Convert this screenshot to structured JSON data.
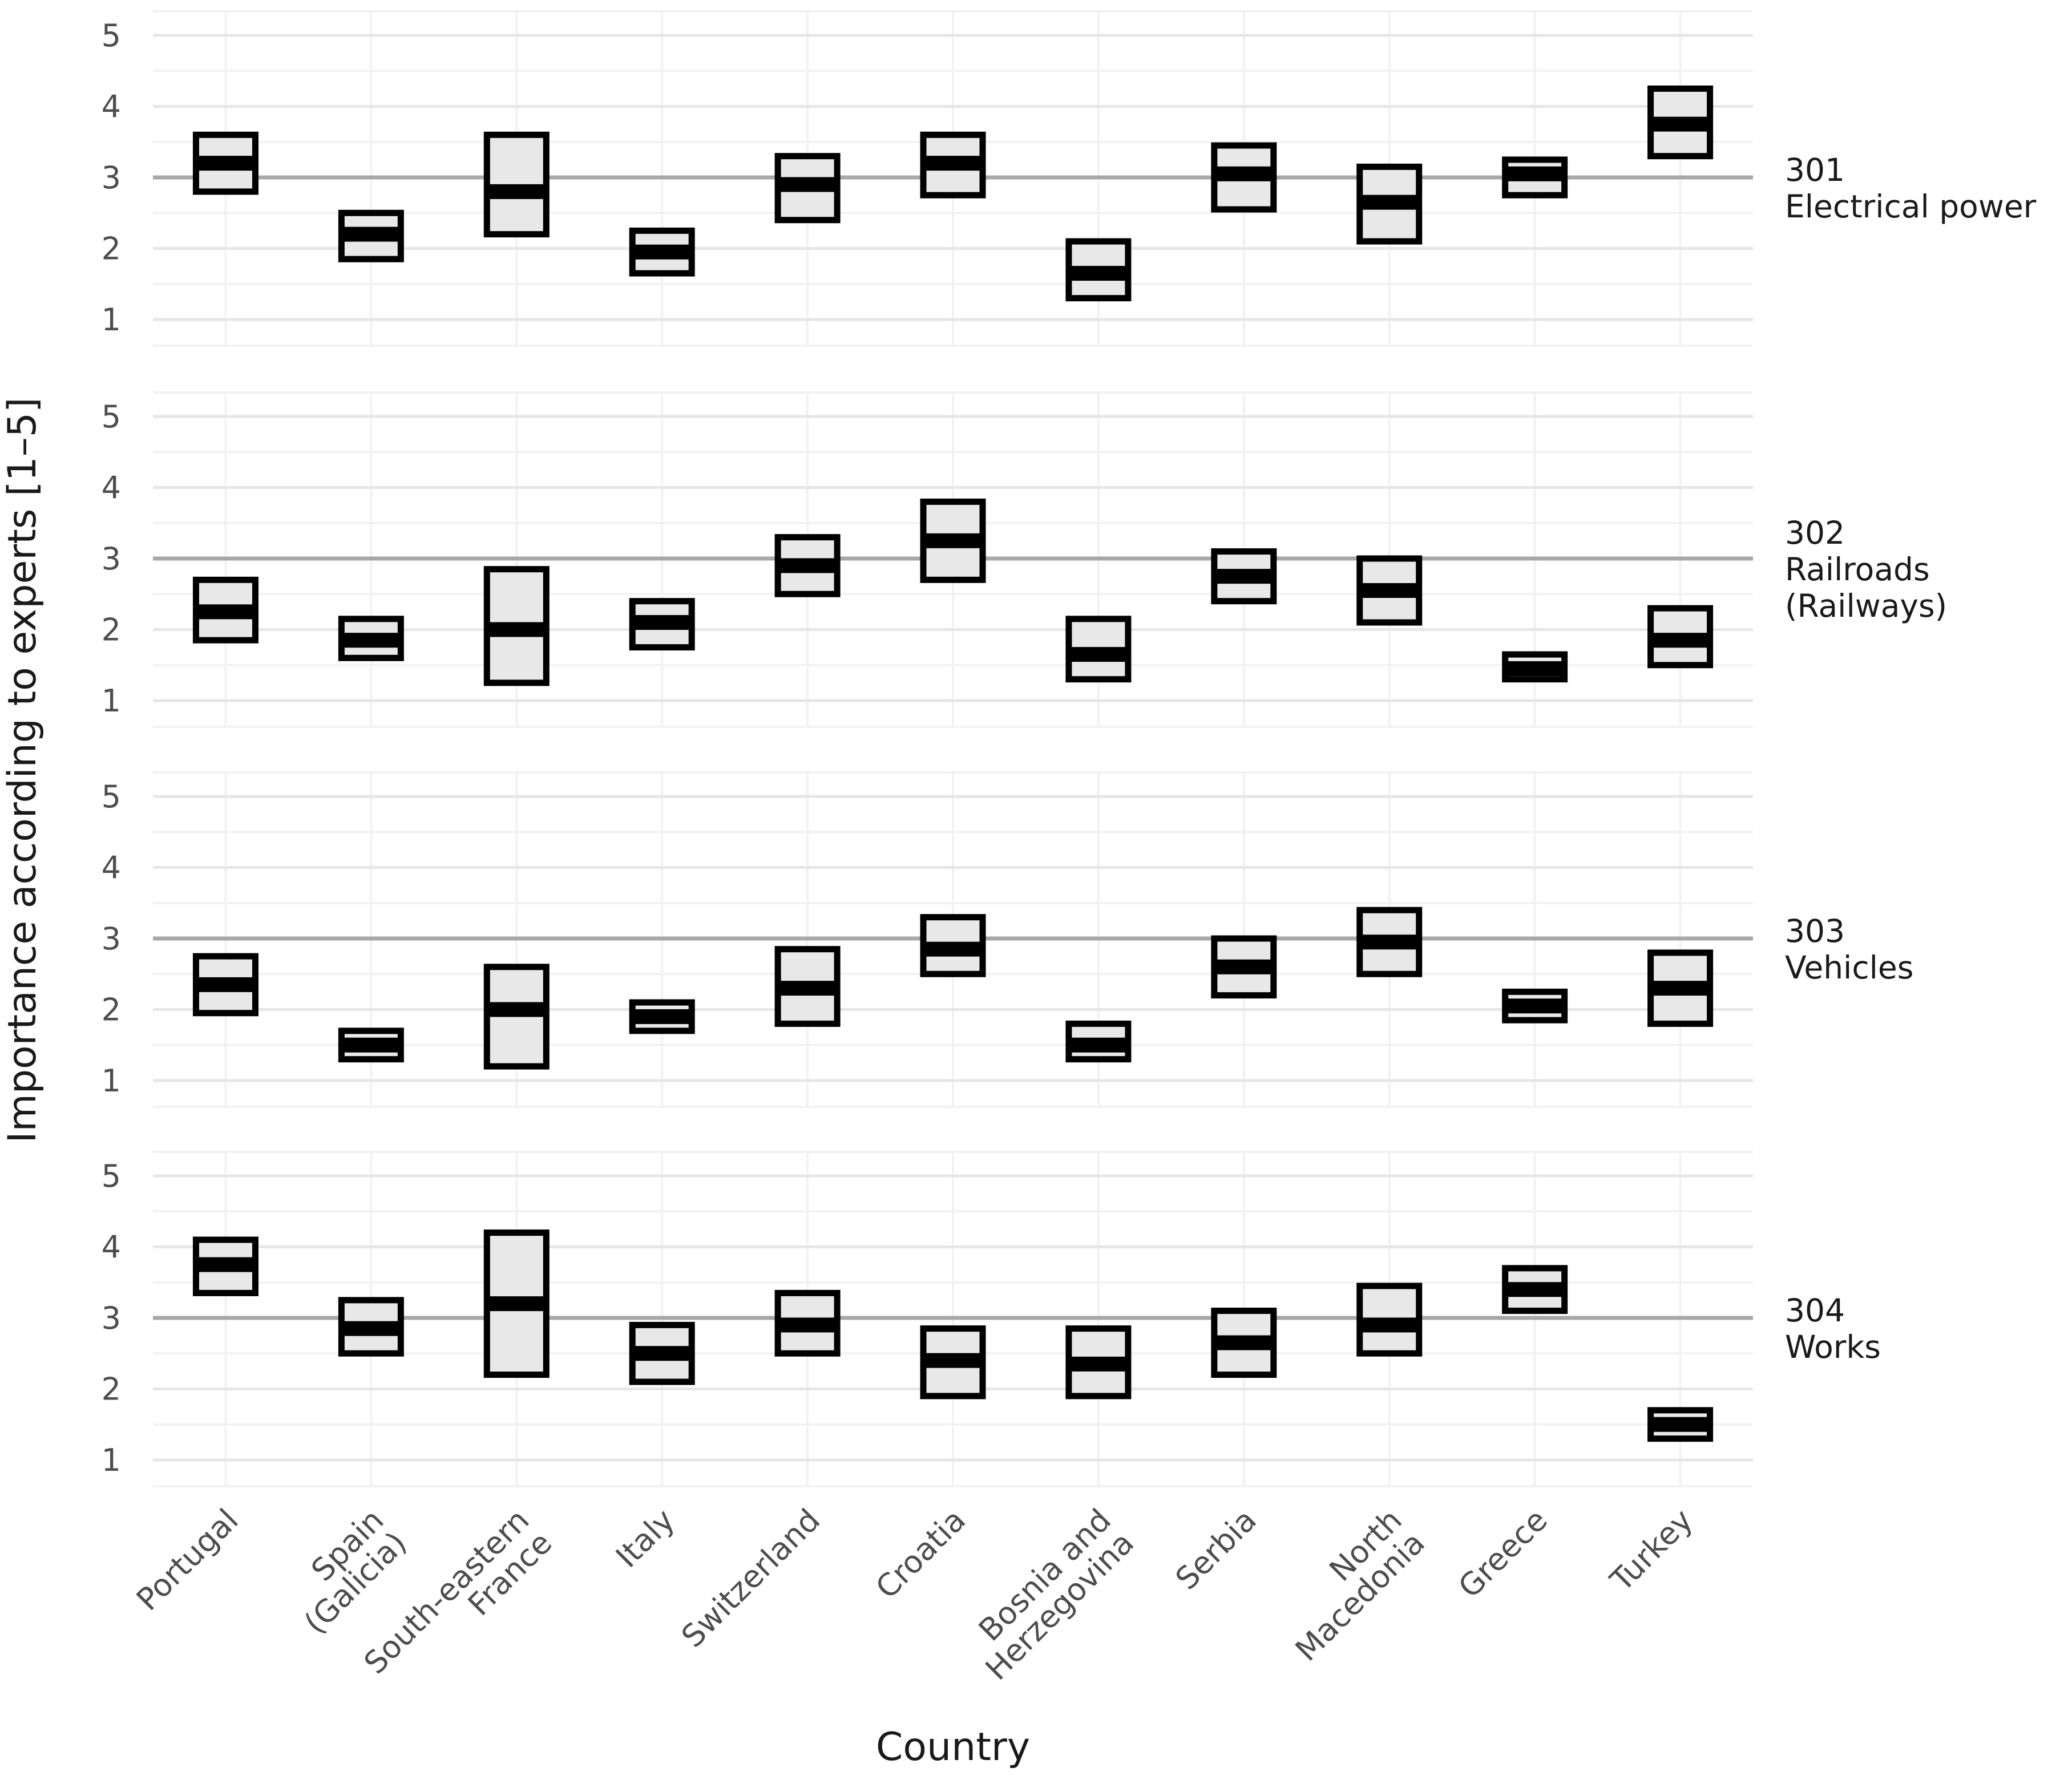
{
  "chart_data": {
    "type": "box",
    "title": "",
    "xlabel": "Country",
    "ylabel": "Importance according to experts [1–5]",
    "ylim": [
      1,
      5
    ],
    "yticks": [
      5,
      4,
      3,
      2,
      1
    ],
    "reference_line_y": 3,
    "grid": "on",
    "legend": "none",
    "box_values_format": "[lower, median, upper]",
    "categories": [
      "Portugal",
      "Spain (Galicia)",
      "South-eastern France",
      "Italy",
      "Switzerland",
      "Croatia",
      "Bosnia and Herzegovina",
      "Serbia",
      "North Macedonia",
      "Greece",
      "Turkey"
    ],
    "category_label_lines": [
      [
        "Portugal"
      ],
      [
        "Spain",
        "(Galicia)"
      ],
      [
        "South-eastern",
        "France"
      ],
      [
        "Italy"
      ],
      [
        "Switzerland"
      ],
      [
        "Croatia"
      ],
      [
        "Bosnia and",
        "Herzegovina"
      ],
      [
        "Serbia"
      ],
      [
        "North",
        "Macedonia"
      ],
      [
        "Greece"
      ],
      [
        "Turkey"
      ]
    ],
    "facets": [
      {
        "code": "301",
        "label": "301 Electrical power",
        "label_lines": [
          "301",
          "Electrical power"
        ],
        "boxes": [
          [
            2.8,
            3.2,
            3.6
          ],
          [
            1.85,
            2.2,
            2.5
          ],
          [
            2.2,
            2.8,
            3.6
          ],
          [
            1.65,
            1.95,
            2.25
          ],
          [
            2.4,
            2.9,
            3.3
          ],
          [
            2.75,
            3.2,
            3.6
          ],
          [
            1.3,
            1.65,
            2.1
          ],
          [
            2.55,
            3.05,
            3.45
          ],
          [
            2.1,
            2.65,
            3.15
          ],
          [
            2.75,
            3.05,
            3.25
          ],
          [
            3.3,
            3.75,
            4.25
          ]
        ]
      },
      {
        "code": "302",
        "label": "302 Railroads (Railways)",
        "label_lines": [
          "302",
          "Railroads",
          "(Railways)"
        ],
        "boxes": [
          [
            1.85,
            2.25,
            2.7
          ],
          [
            1.6,
            1.85,
            2.15
          ],
          [
            1.25,
            2.0,
            2.85
          ],
          [
            1.75,
            2.1,
            2.4
          ],
          [
            2.5,
            2.9,
            3.3
          ],
          [
            2.7,
            3.25,
            3.8
          ],
          [
            1.3,
            1.65,
            2.15
          ],
          [
            2.4,
            2.75,
            3.1
          ],
          [
            2.1,
            2.55,
            3.0
          ],
          [
            1.3,
            1.45,
            1.65
          ],
          [
            1.5,
            1.85,
            2.3
          ]
        ]
      },
      {
        "code": "303",
        "label": "303 Vehicles",
        "label_lines": [
          "303",
          "Vehicles"
        ],
        "boxes": [
          [
            1.95,
            2.35,
            2.75
          ],
          [
            1.3,
            1.5,
            1.7
          ],
          [
            1.2,
            2.0,
            2.6
          ],
          [
            1.7,
            1.9,
            2.1
          ],
          [
            1.8,
            2.3,
            2.85
          ],
          [
            2.5,
            2.85,
            3.3
          ],
          [
            1.3,
            1.5,
            1.8
          ],
          [
            2.2,
            2.6,
            3.0
          ],
          [
            2.5,
            2.95,
            3.4
          ],
          [
            1.85,
            2.05,
            2.25
          ],
          [
            1.8,
            2.3,
            2.8
          ]
        ]
      },
      {
        "code": "304",
        "label": "304 Works",
        "label_lines": [
          "304",
          "Works"
        ],
        "boxes": [
          [
            3.35,
            3.75,
            4.1
          ],
          [
            2.5,
            2.85,
            3.25
          ],
          [
            2.2,
            3.2,
            4.2
          ],
          [
            2.1,
            2.5,
            2.9
          ],
          [
            2.5,
            2.9,
            3.35
          ],
          [
            1.9,
            2.4,
            2.85
          ],
          [
            1.9,
            2.35,
            2.85
          ],
          [
            2.2,
            2.65,
            3.1
          ],
          [
            2.5,
            2.9,
            3.45
          ],
          [
            3.1,
            3.4,
            3.7
          ],
          [
            1.3,
            1.5,
            1.7
          ]
        ]
      }
    ],
    "colors": {
      "box_fill": "#e8e8e8",
      "box_border": "#000000",
      "median_line": "#000000",
      "reference_line": "#a8a8a8",
      "grid_major": "#e6e6e6",
      "grid_minor": "#f2f2f2",
      "tick_text": "#4d4d4d",
      "title_text": "#1a1a1a",
      "background": "#ffffff"
    }
  }
}
